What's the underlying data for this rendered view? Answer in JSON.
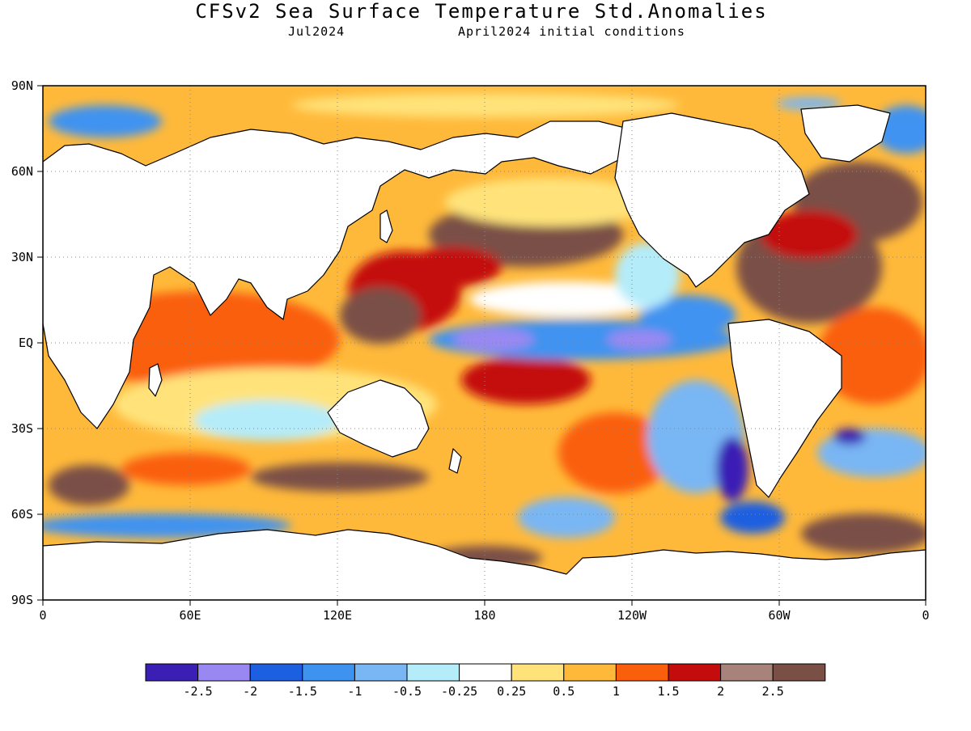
{
  "title": "CFSv2 Sea Surface Temperature Std.Anomalies",
  "subtitle_valid": "Jul2024",
  "subtitle_init": "April2024 initial conditions",
  "axes": {
    "lat_labels": [
      "90N",
      "60N",
      "30N",
      "EQ",
      "30S",
      "60S",
      "90S"
    ],
    "lon_labels": [
      "0",
      "60E",
      "120E",
      "180",
      "120W",
      "60W",
      "0"
    ]
  },
  "colorbar": {
    "colors": [
      "#3b1fb5",
      "#9a88f2",
      "#1c5fe0",
      "#3f93f0",
      "#79b6f4",
      "#b4ecfa",
      "#ffffff",
      "#ffe37a",
      "#ffb93a",
      "#fa5f0c",
      "#c40c0c",
      "#a8837b",
      "#7a4f46"
    ],
    "tick_labels": [
      "-2.5",
      "-2",
      "-1.5",
      "-1",
      "-0.5",
      "-0.25",
      "0.25",
      "0.5",
      "1",
      "1.5",
      "2",
      "2.5"
    ]
  },
  "map_colors": {
    "land": "#ffffff",
    "ocean_base": "#ffb93a",
    "coastline": "#000000",
    "grid": "#888888"
  }
}
